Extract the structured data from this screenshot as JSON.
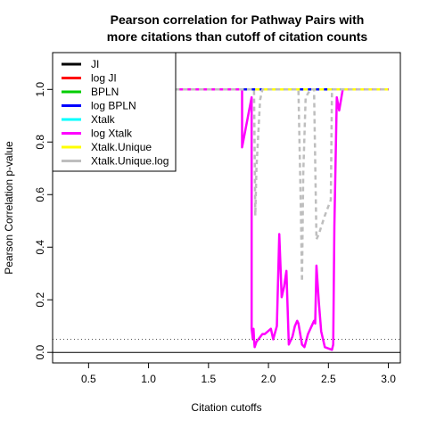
{
  "chart_data": {
    "type": "line",
    "title": [
      "Pearson correlation for Pathway Pairs with",
      "more citations than cutoff of citation counts"
    ],
    "xlabel": "Citation cutoffs",
    "ylabel": "Pearson Correlation p-value",
    "xlim": [
      0.2,
      3.1
    ],
    "ylim": [
      -0.04,
      1.14
    ],
    "xticks": [
      0.5,
      1.0,
      1.5,
      2.0,
      2.5,
      3.0
    ],
    "xtick_labels": [
      "0.5",
      "1.0",
      "1.5",
      "2.0",
      "2.5",
      "3.0"
    ],
    "yticks": [
      0.0,
      0.2,
      0.4,
      0.6,
      0.8,
      1.0
    ],
    "ytick_labels": [
      "0.0",
      "0.2",
      "0.4",
      "0.6",
      "0.8",
      "1.0"
    ],
    "hlines": [
      {
        "y": 0.0,
        "style": "solid",
        "color": "#000000"
      },
      {
        "y": 0.05,
        "style": "dotted",
        "color": "#555555"
      }
    ],
    "legend_position": "top-left",
    "series": [
      {
        "name": "JI",
        "color": "#000000",
        "dash": "none",
        "x": [
          1.22,
          3.0
        ],
        "y": [
          1.0,
          1.0
        ]
      },
      {
        "name": "log JI",
        "color": "#ff0000",
        "dash": "none",
        "x": [
          1.22,
          3.0
        ],
        "y": [
          1.0,
          1.0
        ]
      },
      {
        "name": "BPLN",
        "color": "#00cd00",
        "dash": "none",
        "x": [
          1.22,
          3.0
        ],
        "y": [
          1.0,
          1.0
        ]
      },
      {
        "name": "log BPLN",
        "color": "#0000ff",
        "dash": "none",
        "x": [
          1.22,
          3.0
        ],
        "y": [
          1.0,
          1.0
        ]
      },
      {
        "name": "Xtalk",
        "color": "#00ffff",
        "dash": "dash",
        "x": [
          1.22,
          3.0
        ],
        "y": [
          1.0,
          1.0
        ]
      },
      {
        "name": "log Xtalk",
        "color": "#ff00ff",
        "dash": "none",
        "x": [
          1.22,
          1.78,
          1.78,
          1.86,
          1.86,
          1.87,
          1.875,
          1.88,
          1.885,
          1.9,
          1.95,
          1.97,
          2.02,
          2.04,
          2.07,
          2.09,
          2.11,
          2.13,
          2.15,
          2.17,
          2.2,
          2.22,
          2.24,
          2.25,
          2.28,
          2.3,
          2.33,
          2.36,
          2.38,
          2.39,
          2.4,
          2.42,
          2.44,
          2.47,
          2.53,
          2.54,
          2.55,
          2.57,
          2.59,
          2.62,
          3.0
        ],
        "y": [
          1.0,
          1.0,
          0.78,
          0.97,
          0.09,
          0.05,
          0.09,
          0.05,
          0.02,
          0.04,
          0.07,
          0.07,
          0.09,
          0.05,
          0.1,
          0.45,
          0.21,
          0.25,
          0.31,
          0.03,
          0.06,
          0.1,
          0.12,
          0.11,
          0.03,
          0.02,
          0.07,
          0.1,
          0.12,
          0.11,
          0.33,
          0.19,
          0.08,
          0.02,
          0.01,
          0.03,
          0.48,
          0.97,
          0.92,
          1.0,
          1.0
        ]
      },
      {
        "name": "Xtalk.Unique",
        "color": "#ffff00",
        "dash": "dash",
        "x": [
          1.22,
          3.0
        ],
        "y": [
          1.0,
          1.0
        ]
      },
      {
        "name": "Xtalk.Unique.log",
        "color": "#bebebe",
        "dash": "dash",
        "x": [
          1.22,
          1.88,
          1.89,
          1.9,
          1.93,
          1.95,
          2.25,
          2.27,
          2.28,
          2.29,
          2.31,
          2.35,
          2.38,
          2.4,
          2.42,
          2.47,
          2.52,
          2.53,
          3.0
        ],
        "y": [
          1.0,
          1.0,
          0.52,
          0.7,
          0.96,
          1.0,
          1.0,
          0.54,
          0.27,
          0.68,
          0.97,
          1.0,
          1.0,
          0.43,
          0.45,
          0.52,
          0.58,
          1.0,
          1.0
        ]
      }
    ]
  }
}
